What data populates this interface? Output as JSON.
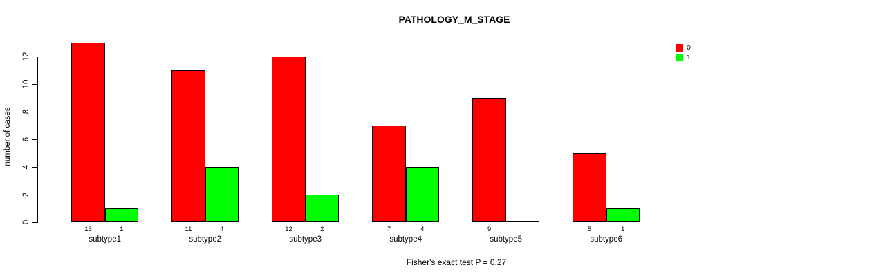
{
  "chart_data": {
    "type": "bar",
    "grouped": true,
    "title": "PATHOLOGY_M_STAGE",
    "xlabel": "",
    "ylabel": "number of cases",
    "annotation": "Fisher's exact test P = 0.27",
    "categories": [
      "subtype1",
      "subtype2",
      "subtype3",
      "subtype4",
      "subtype5",
      "subtype6"
    ],
    "series": [
      {
        "name": "0",
        "color": "#FF0000",
        "values": [
          13,
          11,
          12,
          7,
          9,
          5
        ]
      },
      {
        "name": "1",
        "color": "#00FF00",
        "values": [
          1,
          4,
          2,
          4,
          0,
          1
        ]
      }
    ],
    "bar_value_labels": [
      [
        "13",
        "11",
        "12",
        "7",
        "9",
        "5"
      ],
      [
        "1",
        "4",
        "2",
        "4",
        "",
        "1"
      ]
    ],
    "yticks": [
      "0",
      "2",
      "4",
      "6",
      "8",
      "10",
      "12"
    ],
    "ylim": [
      0,
      13
    ],
    "grid": false,
    "legend_position": "top-right",
    "bar_border_color": "#000000"
  }
}
